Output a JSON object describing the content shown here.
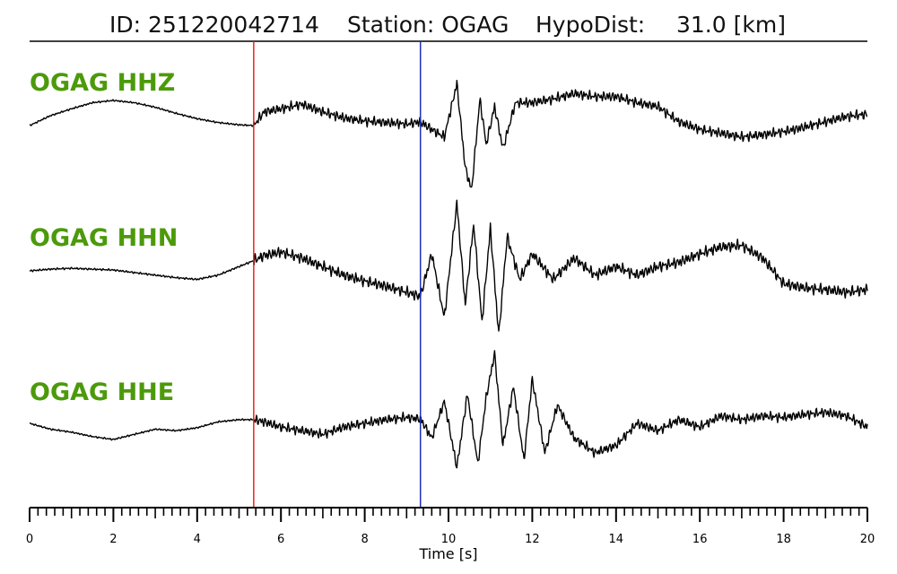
{
  "header": {
    "id_text": "ID: 251220042714",
    "station_text": "Station: OGAG",
    "hypodist_text": "HypoDist:",
    "hypodist_value": "31.0 [km]"
  },
  "colors": {
    "trace": "#000000",
    "channel_label": "#4c9a0b",
    "p_pick": "#e8231e",
    "s_pick": "#1f2fb8",
    "axis": "#000000"
  },
  "chart_data": {
    "type": "line",
    "title": "ID: 251220042714   Station: OGAG   HypoDist:    31.0 [km]",
    "xlabel": "Time [s]",
    "ylabel": "",
    "xlim": [
      0,
      20
    ],
    "xticks": [
      0,
      2,
      4,
      6,
      8,
      10,
      12,
      14,
      16,
      18,
      20
    ],
    "minor_tick_step": 0.2,
    "grid": false,
    "picks": [
      {
        "phase": "P",
        "time": 5.35,
        "color": "#e8231e"
      },
      {
        "phase": "S",
        "time": 9.33,
        "color": "#1f2fb8"
      }
    ],
    "series": [
      {
        "name": "OGAG HHZ",
        "x": [
          0,
          0.5,
          1,
          1.5,
          2,
          2.5,
          3,
          3.5,
          4,
          4.5,
          5,
          5.35,
          5.6,
          6,
          6.5,
          7,
          7.5,
          8,
          8.5,
          9,
          9.33,
          9.6,
          9.9,
          10.2,
          10.4,
          10.55,
          10.75,
          10.9,
          11.1,
          11.3,
          11.6,
          12,
          12.5,
          13,
          13.5,
          14,
          14.5,
          15,
          15.5,
          16,
          16.5,
          17,
          17.5,
          18,
          18.5,
          19,
          19.5,
          20
        ],
        "y": [
          0.0,
          0.13,
          0.22,
          0.3,
          0.33,
          0.3,
          0.24,
          0.16,
          0.09,
          0.04,
          0.01,
          0.0,
          0.18,
          0.22,
          0.28,
          0.18,
          0.1,
          0.06,
          0.04,
          0.02,
          0.05,
          -0.05,
          -0.15,
          0.55,
          -0.55,
          -0.85,
          0.35,
          -0.25,
          0.25,
          -0.3,
          0.3,
          0.3,
          0.35,
          0.42,
          0.38,
          0.38,
          0.3,
          0.25,
          0.05,
          -0.05,
          -0.1,
          -0.15,
          -0.12,
          -0.08,
          -0.02,
          0.05,
          0.12,
          0.15
        ]
      },
      {
        "name": "OGAG HHN",
        "x": [
          0,
          0.5,
          1,
          1.5,
          2,
          2.5,
          3,
          3.5,
          4,
          4.5,
          5,
          5.35,
          5.6,
          6,
          6.5,
          7,
          7.5,
          8,
          8.5,
          9,
          9.33,
          9.6,
          9.9,
          10.2,
          10.4,
          10.6,
          10.8,
          11.0,
          11.2,
          11.4,
          11.7,
          12,
          12.5,
          13,
          13.5,
          14,
          14.5,
          15,
          15.5,
          16,
          16.5,
          17,
          17.5,
          18,
          18.5,
          19,
          19.5,
          20
        ],
        "y": [
          0.0,
          0.02,
          0.03,
          0.02,
          0.01,
          -0.02,
          -0.05,
          -0.08,
          -0.1,
          -0.05,
          0.05,
          0.12,
          0.18,
          0.22,
          0.15,
          0.05,
          -0.05,
          -0.12,
          -0.18,
          -0.25,
          -0.3,
          0.2,
          -0.55,
          0.8,
          -0.4,
          0.55,
          -0.6,
          0.5,
          -0.75,
          0.4,
          -0.1,
          0.2,
          -0.1,
          0.15,
          -0.05,
          0.05,
          -0.05,
          0.05,
          0.1,
          0.2,
          0.28,
          0.3,
          0.15,
          -0.15,
          -0.2,
          -0.22,
          -0.25,
          -0.22
        ]
      },
      {
        "name": "OGAG HHE",
        "x": [
          0,
          0.5,
          1,
          1.5,
          2,
          2.5,
          3,
          3.5,
          4,
          4.5,
          5,
          5.35,
          5.6,
          6,
          6.5,
          7,
          7.5,
          8,
          8.5,
          9,
          9.33,
          9.6,
          9.9,
          10.2,
          10.45,
          10.7,
          10.9,
          11.1,
          11.3,
          11.55,
          11.8,
          12,
          12.3,
          12.6,
          13,
          13.5,
          14,
          14.5,
          15,
          15.5,
          16,
          16.5,
          17,
          17.5,
          18,
          18.5,
          19,
          19.5,
          20
        ],
        "y": [
          0.0,
          -0.08,
          -0.12,
          -0.18,
          -0.22,
          -0.15,
          -0.08,
          -0.1,
          -0.06,
          0.02,
          0.05,
          0.05,
          0.02,
          -0.05,
          -0.1,
          -0.15,
          -0.05,
          0.0,
          0.05,
          0.08,
          0.06,
          -0.2,
          0.3,
          -0.6,
          0.4,
          -0.55,
          0.35,
          0.95,
          -0.3,
          0.5,
          -0.5,
          0.6,
          -0.4,
          0.25,
          -0.2,
          -0.4,
          -0.3,
          0.0,
          -0.1,
          0.05,
          -0.05,
          0.1,
          0.05,
          0.1,
          0.08,
          0.12,
          0.15,
          0.1,
          -0.05
        ]
      }
    ]
  }
}
